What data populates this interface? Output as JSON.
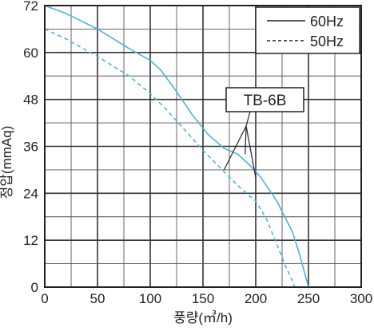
{
  "chart_data": {
    "type": "line",
    "xlabel": "풍량(㎥/h)",
    "ylabel": "정압(mmAq)",
    "xlim": [
      0,
      300
    ],
    "ylim": [
      0,
      72
    ],
    "x_ticks": [
      0,
      50,
      100,
      150,
      200,
      250,
      300
    ],
    "y_ticks": [
      0,
      12,
      24,
      36,
      48,
      60,
      72
    ],
    "grid": true,
    "legend_position": "top-right",
    "series": [
      {
        "name": "60Hz",
        "color": "#4bb4dc",
        "dash": "solid",
        "x": [
          0,
          20,
          50,
          80,
          100,
          110,
          125,
          140,
          155,
          170,
          183,
          195,
          205,
          220,
          235,
          242,
          250
        ],
        "y": [
          72,
          70,
          66,
          61,
          58,
          55.5,
          50,
          44,
          39,
          35.5,
          34,
          31,
          28,
          22,
          14,
          8,
          0
        ]
      },
      {
        "name": "50Hz",
        "color": "#4bb4dc",
        "dash": "dashed",
        "x": [
          0,
          20,
          50,
          80,
          100,
          115,
          130,
          150,
          170,
          185,
          200,
          210,
          220,
          228,
          235,
          237
        ],
        "y": [
          66,
          63.5,
          59,
          54,
          49.5,
          45.5,
          41,
          35,
          29.5,
          25.5,
          22,
          17.5,
          11,
          5.5,
          1.5,
          0
        ]
      }
    ],
    "annotations": [
      {
        "text": "TB-6B",
        "points": [
          [
            190,
            34
          ],
          [
            170,
            30
          ],
          [
            200,
            28
          ]
        ]
      }
    ]
  }
}
